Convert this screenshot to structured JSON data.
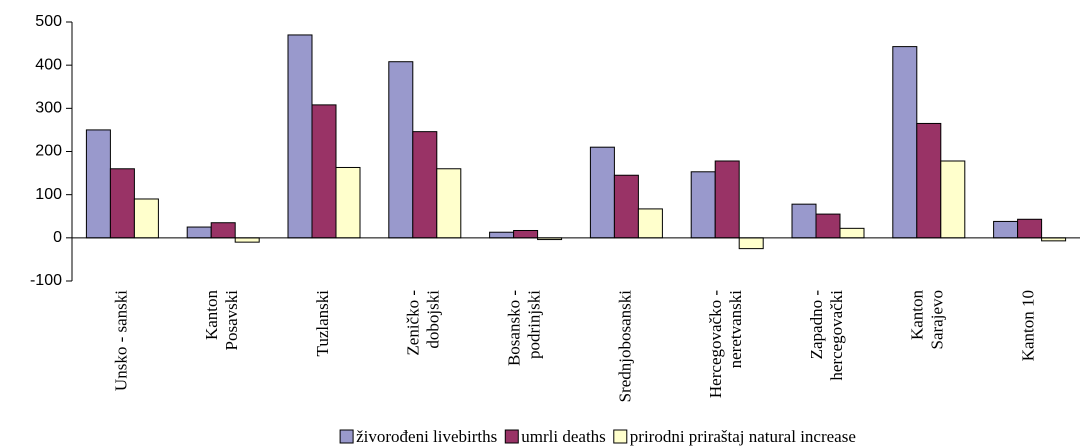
{
  "chart_data": {
    "type": "bar",
    "categories": [
      [
        "Unsko - sanski"
      ],
      [
        "Kanton",
        "Posavski"
      ],
      [
        "Tuzlanski"
      ],
      [
        "Zeničko -",
        "dobojski"
      ],
      [
        "Bosansko -",
        "podrinjski"
      ],
      [
        "Srednjobosanski"
      ],
      [
        "Hercegovačko -",
        "neretvanski"
      ],
      [
        "Zapadno -",
        "hercegovački"
      ],
      [
        "Kanton",
        "Sarajevo"
      ],
      [
        "Kanton 10"
      ]
    ],
    "series": [
      {
        "name": "živorođeni livebirths",
        "color": "#9999cc",
        "values": [
          250,
          25,
          470,
          408,
          13,
          210,
          153,
          78,
          443,
          38
        ]
      },
      {
        "name": "umrli deaths",
        "color": "#993366",
        "values": [
          160,
          35,
          308,
          246,
          17,
          145,
          178,
          55,
          265,
          43
        ]
      },
      {
        "name": "prirodni priraštaj natural increase",
        "color": "#ffffcc",
        "values": [
          90,
          -10,
          163,
          160,
          -4,
          67,
          -25,
          22,
          178,
          -7
        ]
      }
    ],
    "ylim": [
      -100,
      500
    ],
    "yticks": [
      -100,
      0,
      100,
      200,
      300,
      400,
      500
    ],
    "legend": "bottom"
  }
}
